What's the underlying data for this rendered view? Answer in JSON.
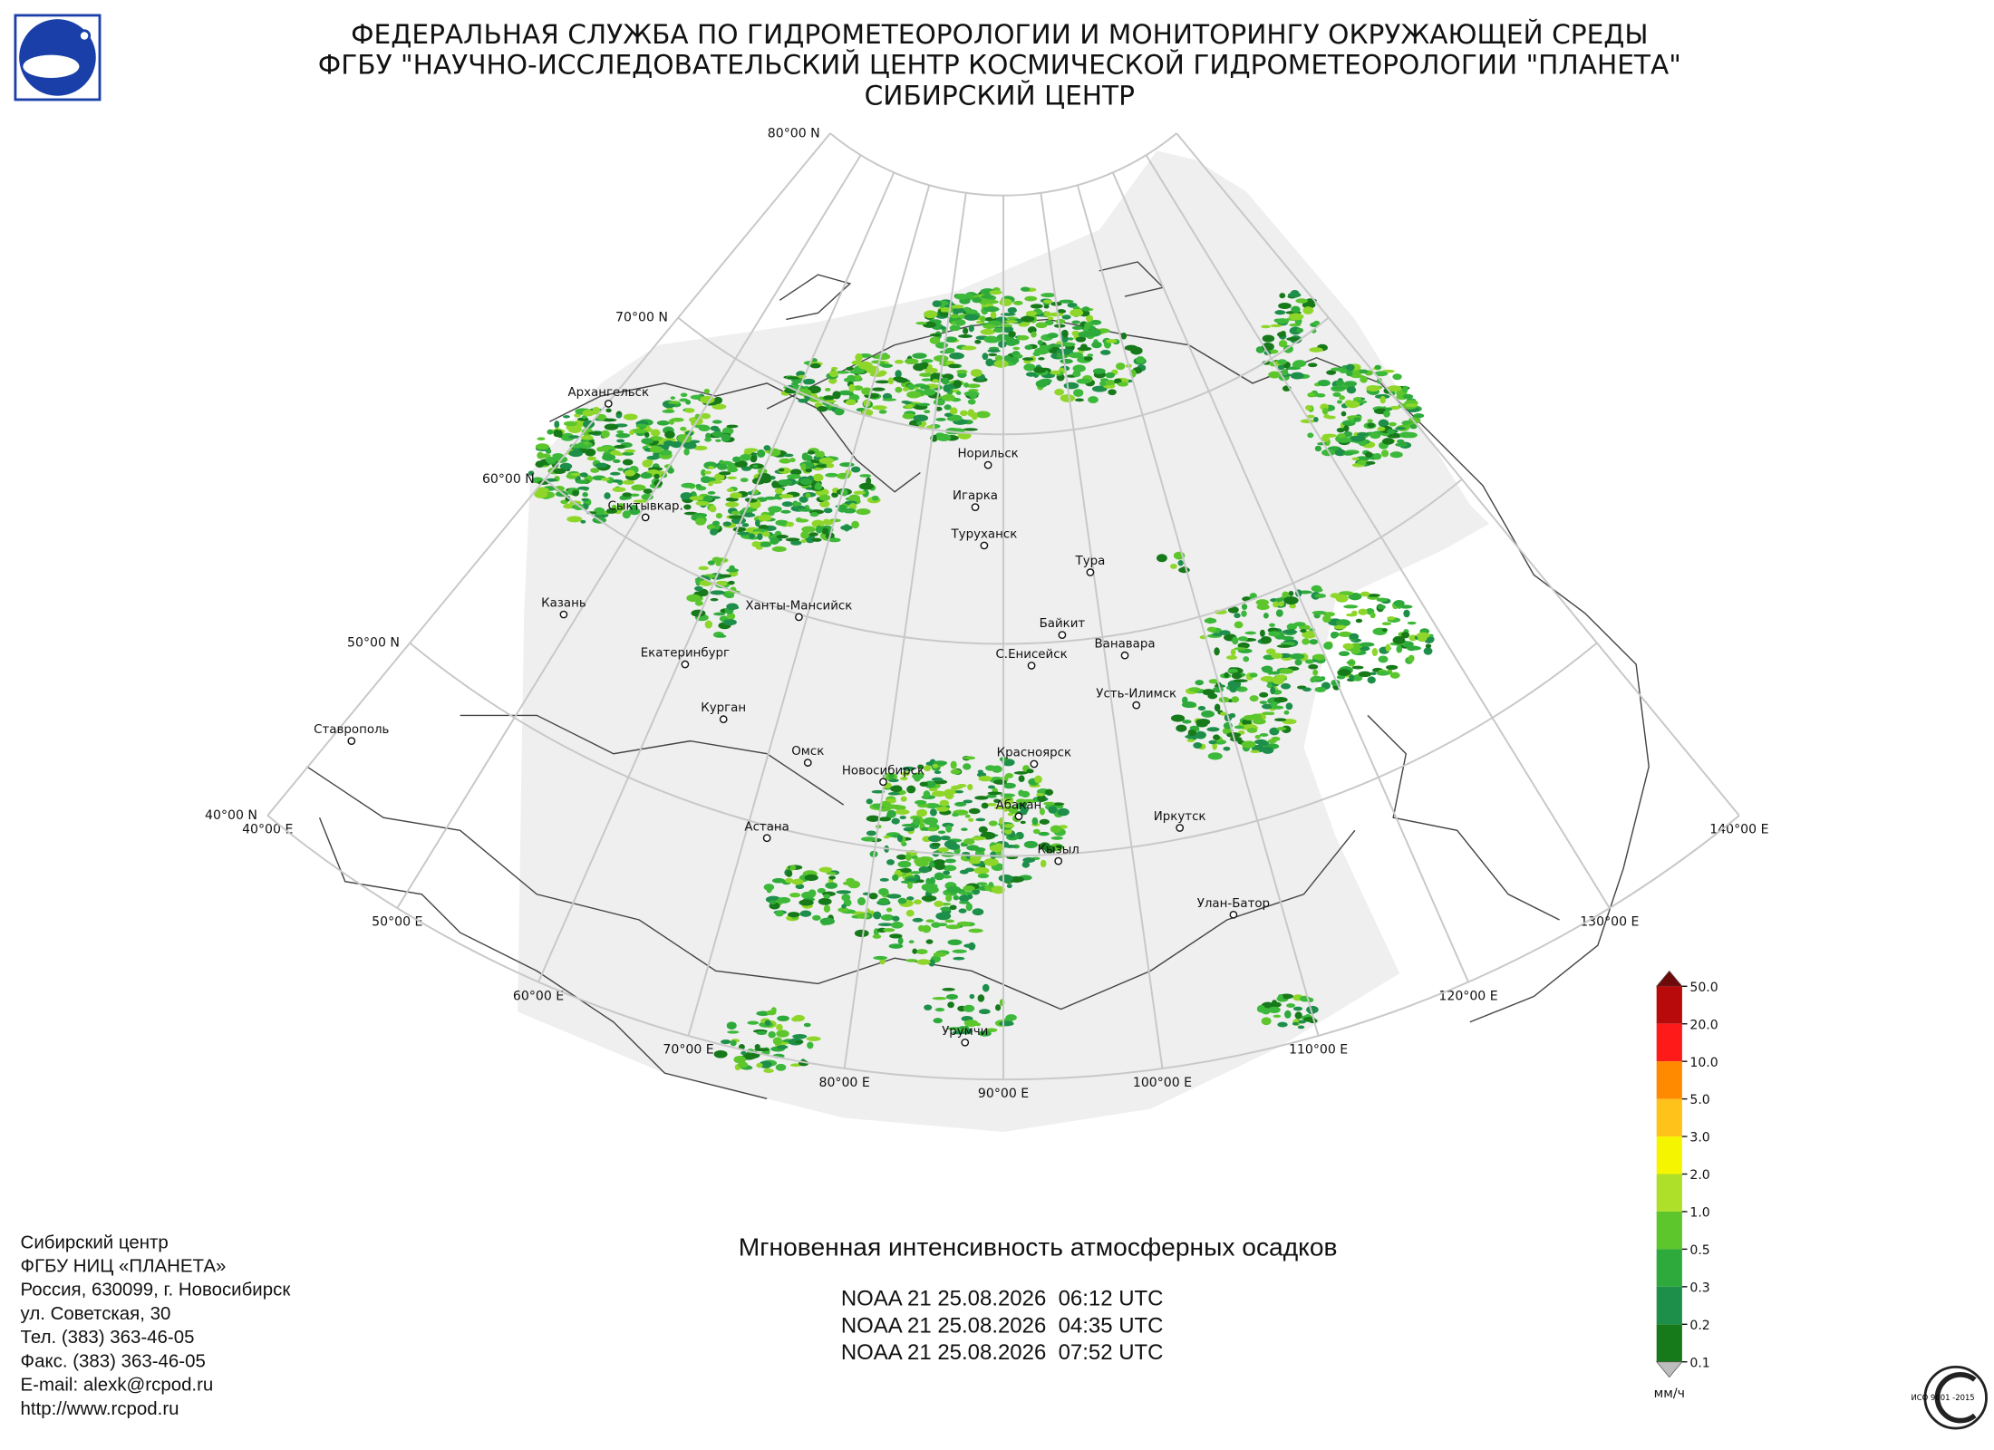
{
  "header": {
    "lines": [
      "ФЕДЕРАЛЬНАЯ СЛУЖБА ПО ГИДРОМЕТЕОРОЛОГИИ И МОНИТОРИНГУ ОКРУЖАЮЩЕЙ СРЕДЫ",
      "ФГБУ \"НАУЧНО-ИССЛЕДОВАТЕЛЬСКИЙ ЦЕНТР КОСМИЧЕСКОЙ ГИДРОМЕТЕОРОЛОГИИ \"ПЛАНЕТА\"",
      "СИБИРСКИЙ ЦЕНТР"
    ]
  },
  "map": {
    "latitude_labels": [
      "80°00 N",
      "70°00 N",
      "60°00 N",
      "50°00 N",
      "40°00 N"
    ],
    "longitude_labels": [
      "40°00 E",
      "50°00 E",
      "60°00 E",
      "70°00 E",
      "80°00 E",
      "90°00 E",
      "100°00 E",
      "110°00 E",
      "120°00 E",
      "130°00 E",
      "140°00 E"
    ],
    "cities": [
      "Архангельск",
      "Сыктывкар.",
      "Казань",
      "Ханты-Мансийск",
      "Екатеринбург",
      "Курган",
      "Ставрополь",
      "Омск",
      "Новосибирск",
      "Астана",
      "Норильск",
      "Игарка",
      "Туруханск",
      "Тура",
      "Байкит",
      "С.Енисейск",
      "Ванавара",
      "Усть-Илимск",
      "Красноярск",
      "Абакан",
      "Кызыл",
      "Иркутск",
      "Улан-Батор",
      "Урумчи"
    ]
  },
  "colorbar": {
    "labels": [
      "50.0",
      "20.0",
      "10.0",
      "5.0",
      "3.0",
      "2.0",
      "1.0",
      "0.5",
      "0.3",
      "0.2",
      "0.1"
    ],
    "colors": [
      "#6e0a0a",
      "#b80a0a",
      "#ff1a1a",
      "#ff8a00",
      "#ffc21a",
      "#f5f500",
      "#aee02a",
      "#5cc62c",
      "#2eaa3c",
      "#1d8f4a",
      "#177a1a",
      "#bdbdbd"
    ],
    "unit": "мм/ч"
  },
  "title": "Мгновенная интенсивность атмосферных осадков",
  "passes": [
    "NOAA 21 25.08.2026  06:12 UTC",
    "NOAA 21 25.08.2026  04:35 UTC",
    "NOAA 21 25.08.2026  07:52 UTC"
  ],
  "contact": {
    "lines": [
      "Сибирский центр",
      "ФГБУ НИЦ «ПЛАНЕТА»",
      "Россия, 630099, г. Новосибирск",
      "ул. Советская, 30",
      "Тел. (383) 363-46-05",
      "Факс. (383) 363-46-05",
      "E-mail: alexk@rcpod.ru",
      "http://www.rcpod.ru"
    ]
  },
  "certification": {
    "text": "ИСО 9001 -2015"
  }
}
